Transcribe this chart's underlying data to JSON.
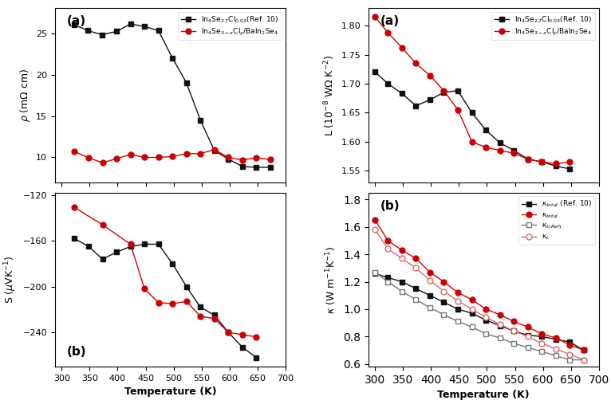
{
  "rho_black_x": [
    323,
    347,
    372,
    398,
    423,
    448,
    473,
    498,
    523,
    548,
    573,
    598,
    623,
    648,
    673
  ],
  "rho_black_y": [
    26.0,
    25.3,
    24.8,
    25.2,
    26.1,
    25.8,
    25.3,
    22.0,
    19.0,
    14.5,
    10.8,
    9.8,
    8.9,
    8.8,
    8.8
  ],
  "rho_red_x": [
    323,
    348,
    373,
    398,
    423,
    448,
    473,
    498,
    523,
    548,
    573,
    598,
    623,
    648,
    673
  ],
  "rho_red_y": [
    10.7,
    9.95,
    9.35,
    9.85,
    10.35,
    10.0,
    10.0,
    10.1,
    10.45,
    10.45,
    10.95,
    10.0,
    9.7,
    9.95,
    9.75
  ],
  "S_black_x": [
    323,
    348,
    373,
    398,
    423,
    448,
    473,
    498,
    523,
    548,
    573,
    598,
    623,
    648,
    673
  ],
  "S_black_y": [
    -158,
    -165,
    -176,
    -170,
    -165,
    -163,
    -163,
    -180,
    -200,
    -218,
    -225,
    -240,
    -253,
    -262,
    null
  ],
  "S_red_x": [
    323,
    373,
    423,
    448,
    473,
    498,
    523,
    548,
    573,
    598,
    623,
    648,
    673
  ],
  "S_red_y": [
    -131,
    -146,
    -163,
    -202,
    -214,
    -215,
    -213,
    -226,
    -228,
    -240,
    -242,
    -244,
    null
  ],
  "L_black_x": [
    300,
    323,
    348,
    373,
    398,
    423,
    448,
    473,
    498,
    523,
    548,
    573,
    598,
    623,
    648,
    673
  ],
  "L_black_y": [
    1.72,
    1.7,
    1.683,
    1.662,
    1.672,
    1.685,
    1.688,
    1.65,
    1.62,
    1.598,
    1.585,
    1.57,
    1.565,
    1.558,
    1.553,
    null
  ],
  "L_red_x": [
    300,
    323,
    348,
    373,
    398,
    423,
    448,
    473,
    498,
    523,
    548,
    573,
    598,
    623,
    648,
    673
  ],
  "L_red_y": [
    1.815,
    1.788,
    1.762,
    1.735,
    1.714,
    1.688,
    1.655,
    1.6,
    1.59,
    1.585,
    1.58,
    1.57,
    1.565,
    1.562,
    1.565,
    null
  ],
  "kappa_black_x": [
    300,
    323,
    348,
    373,
    398,
    423,
    448,
    473,
    498,
    523,
    548,
    573,
    598,
    623,
    648,
    673
  ],
  "kappa_black_y": [
    1.26,
    1.23,
    1.2,
    1.15,
    1.1,
    1.05,
    1.0,
    0.97,
    0.92,
    0.88,
    0.84,
    0.81,
    0.8,
    0.78,
    0.76,
    0.7
  ],
  "kappa_red_x": [
    300,
    323,
    348,
    373,
    398,
    423,
    448,
    473,
    498,
    523,
    548,
    573,
    598,
    623,
    648,
    673
  ],
  "kappa_red_y": [
    1.65,
    1.5,
    1.43,
    1.37,
    1.27,
    1.2,
    1.12,
    1.07,
    1.0,
    0.96,
    0.91,
    0.87,
    0.82,
    0.79,
    0.74,
    0.7
  ],
  "kappa_L_black_x": [
    300,
    323,
    348,
    373,
    398,
    423,
    448,
    473,
    498,
    523,
    548,
    573,
    598,
    623,
    648,
    673
  ],
  "kappa_L_black_y": [
    1.27,
    1.2,
    1.13,
    1.07,
    1.01,
    0.96,
    0.91,
    0.87,
    0.82,
    0.79,
    0.75,
    0.72,
    0.69,
    0.66,
    0.63,
    0.63
  ],
  "kappa_L_red_x": [
    300,
    323,
    348,
    373,
    398,
    423,
    448,
    473,
    498,
    523,
    548,
    573,
    598,
    623,
    648,
    673
  ],
  "kappa_L_red_y": [
    1.58,
    1.44,
    1.37,
    1.3,
    1.21,
    1.13,
    1.06,
    1.0,
    0.94,
    0.89,
    0.84,
    0.8,
    0.75,
    0.71,
    0.67,
    0.63
  ],
  "legend_label_black_ref": "In$_4$Se$_{2.7}$Cl$_{0.03}$(Ref. 10)",
  "legend_label_red_composite": "In$_4$Se$_{3-x}$Cl$_y$/BaIn$_2$Se$_4$",
  "legend_label_kappa_black": "$\\kappa_{total}$ (Ref. 10)",
  "legend_label_kappa_red": "$\\kappa_{total}$",
  "legend_label_kL_black": "$\\kappa_{L(Ref)}$",
  "legend_label_kL_red": "$\\kappa_L$",
  "rho_ylabel": "$\\rho$ (m$\\Omega$ cm)",
  "S_ylabel": "S ($\\mu$VK$^{-1}$)",
  "L_ylabel": "L (10$^{-8}$ W$\\Omega$ K$^{-2}$)",
  "kappa_ylabel": "$\\kappa$ (W m$^{-1}$K$^{-1}$)",
  "xlabel": "Temperature (K)",
  "rho_ylim": [
    7,
    28
  ],
  "S_ylim": [
    -270,
    -118
  ],
  "L_ylim": [
    1.53,
    1.83
  ],
  "kappa_ylim": [
    0.58,
    1.85
  ],
  "xlim": [
    288,
    700
  ],
  "color_black": "#111111",
  "color_red": "#cc0000",
  "color_kL_black": "#777777",
  "color_kL_red": "#dd6666",
  "bg_color": "#ffffff"
}
